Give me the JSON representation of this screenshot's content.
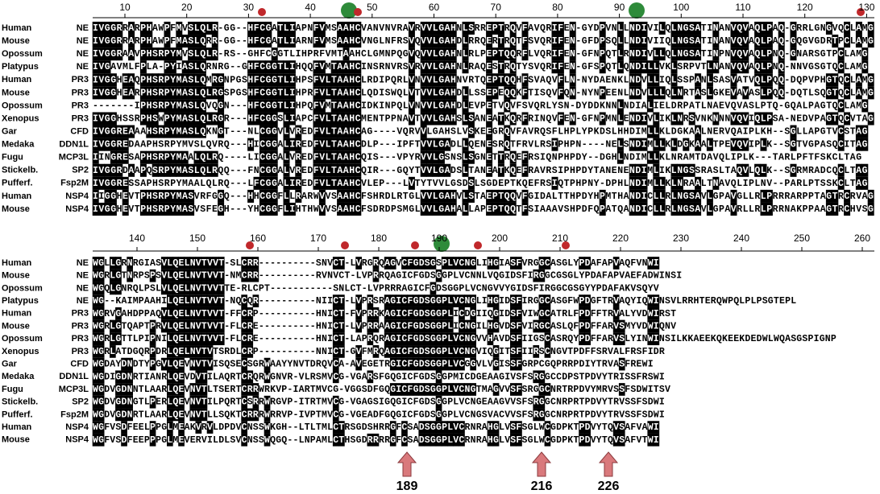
{
  "block1": {
    "ruler": [
      10,
      20,
      30,
      40,
      50,
      60,
      70,
      80,
      90,
      100,
      110,
      120,
      130
    ],
    "rows": [
      {
        "species": "Human",
        "protein": "NE",
        "sequence": "IVGGRRARPHAWPFMVSLQLR-GG--HFCGATLIAPNFVMSAAHCVANVNVRAVRVVLGAHNLSRREPTRQVFAVQRIFEN-GYDPVNLLNDIVILQLNGSATINANVQVAQLPAQ-GRRLGNGVQCLAMG"
      },
      {
        "species": "Mouse",
        "protein": "NE",
        "sequence": "IVGGRRARPHAWPFMASLQRR-GG--HFCGATLIARNFVMSAAHCVNGLNFRSVQVVLGAHDLRRQERTRQTFSVQRIFEN-GFDPSQLLNDIVIIQLNGSATINANVQVAQLPAQ-GQGVGDRTPCLAMG"
      },
      {
        "species": "Opossum",
        "protein": "NE",
        "sequence": "IVGGRAAVPHSRPYMVSLQLR-RS--GHFCGGTLIHPRFVMTAAHCLGMNPQGVQVVLGAHNLRLPEPTQQRFLVQRIFEN-GFNPQTLRNDIVLLQLNGSATINPNVQVAQLPNQ-GNARSGTPCLAMG"
      },
      {
        "species": "Platypus",
        "protein": "NE",
        "sequence": "IVGAVMLFPLA-PYIASLQRNRG--GHFCGGTLIHQQFVMTAAHCINSRNVRSVRVVLGAHNLRAQESTRQTYSVQRIFEN-GFSPQTLQNDILLVKLSRPVTLNANVQVAQLPNQ-NNVGSGTQCLAMG"
      },
      {
        "species": "Human",
        "protein": "PR3",
        "sequence": "IVGGHEAQPHSRPYMASLQMRGNPGSHFCGGTLIHPSFVLTAAHCLRDIPQRLVNVVLGAHNVRTQEPTQQHFSVAQVFLN-NYDAENKLNDVLLIQLSSPANLSASVATVQLPQQ-DQPVPHGTQCLAMG"
      },
      {
        "species": "Mouse",
        "protein": "PR3",
        "sequence": "IVGGHEARPHSRPYMASLQLRGSPGSHFCGGTLIHPRFVLTAAHCLQDISWQLVTVVLGAHDLLSSEPEQQKFTISQVFQN-NYNPEENLNDVLLLQLNRTASLGKEVAVASLPQQ-DQTLSQGTQCLAMG"
      },
      {
        "species": "Opossum",
        "protein": "PR3",
        "sequence": "-------IPHSRPYMASLQVQGN---HFCGGTLIHPQFVMTAAHCIDKINPQLVNVVLGAHDLEVPETVQVFSVQRLYSN-DYDDKNNLNDIALIELDRPATLNAEVQVASLPTQ-GQALPAGTQCLAMG"
      },
      {
        "species": "Xenopus",
        "protein": "PR3",
        "sequence": "IVGGHSSRPHSWPYMASLQLRGR---HFCGGSLIAPCFVLTAAHCMENTPPNAVTVVLGAHSLSANEATKQRFRINQVFEN-GFNPMNLENDIVLIKLNRSVNKNNNVQVIQLPSA-NEDVPAGTQCVTAG"
      },
      {
        "species": "Gar",
        "protein": "CFD",
        "sequence": "IVGGREAAAHSRPYMASLQKNGT---NLCGGVLVREDFVLTAAHCAG----VQRVVLGAHSLVSKEEGRQVFAVRQSFLHPLYPKDSLHHDIMLLKLDGKAALNERVQAIPLKH--SGLLAPGTVCSTAG"
      },
      {
        "species": "Medaka",
        "protein": "DDN1L",
        "sequence": "IVGGREDAAPHSRPYMVSLQVRQ---HICGGALIREDFVLTAAHCDLP---IPFTVVLGADLLQENESRQTFRVLRSIPHPN----NELSNDIMLLKLDGKAALTPEVQVIPLK--SGTVGPASQCITAG"
      },
      {
        "species": "Fugu",
        "protein": "MCP3L",
        "sequence": "IINGRESAPHSRPYMAALQLRQ----LICGGALVREDFVLTAAHCQIS---VPYRVVLGSNSLSGNETTRQEFRSIQNPHPDY--DGHLNDIMLLKLNRAMTDAVQLIPLK---TARLPFTFSKCLTAG"
      },
      {
        "species": "Stickelb.",
        "protein": "SP2",
        "sequence": "IVGGRDAAPQSRPYMASLQLRQQ---FNCGGALVREDFVLTAAHCQIR---GQYTVVLGADSLTANEATKQEFRAVRSIPHPDYTANENENDIMLIKLNGSSRASLTAQVLQLK--SGRMRADCQCLTAG"
      },
      {
        "species": "Pufferf.",
        "protein": "Fsp2M",
        "sequence": "IVGGRESSAPHSRPYMAALQLRQ---LFCGGALIREDFVLTAAHCVLEP---LVTYTVVLGSDSLSGDEPTKQEFRSIQTPHPNY-DPHLNDIMLLKLNRAALTNAVQLIPLNV--PARLPTSSKCLTAG"
      },
      {
        "species": "Human",
        "protein": "NSP4",
        "sequence": "IIGGHEVTPHSRPYMASVRFGGQ---HHCGGFLLRARWVVSAAHCFSHRDLRTGLVVLGAHVLSTAEPTQQVFGIDALTTHPDYHPMTHANDICLLRLNGSAVLGPAVGLLRLPRRRARPPTAGTRCRVAG"
      },
      {
        "species": "Mouse",
        "protein": "NSP4",
        "sequence": "IVGGHEVTPHSRPYMASVSFEGH---YHCGGFLIHTHWVVSAAHCFSDRDPSMGLVVLGAHALLAPEPTQQTFSIAAAVSHPDFQPATQANDICLLRLNGSAVLGPAVRLLRLPRRNAKPPAAGTRCHVSG"
      }
    ]
  },
  "block2": {
    "ruler": [
      140,
      150,
      160,
      170,
      180,
      190,
      200,
      210,
      220,
      230,
      240,
      250,
      260
    ],
    "rows": [
      {
        "species": "Human",
        "protein": "NE",
        "sequence": "WGLLGRNRGIASVLQELNVTVVT-SLCRR----------SNVCT-LVRGRQAGVCFGDSGSPLVCNGLIHGIASFVRGGCASGLYPDAFAPVAQFVNWI"
      },
      {
        "species": "Mouse",
        "protein": "NE",
        "sequence": "WGRLGTNRPSPSVLQELNVTVVT-NMCRR----------RVNVCT-LVPRRQAGICFGDSGGPLVCNNLVQGIDSFIRGGCGSGLYPDAFAPVAEFADWINSI"
      },
      {
        "species": "Opossum",
        "protein": "NE",
        "sequence": "WGQLGNRQLPSLVLQELNVTVVTTE-RLCPT-----------SNLCT-LVPRRRAGICFGDSGGPLVCNGVVYGIDSFIRGGCGSGYYPDAFAKVSQYV"
      },
      {
        "species": "Platypus",
        "protein": "NE",
        "sequence": "WG--KAIMPAAHILQELNVTVVT-NQCQR----------NIICT-LVPRSRAGICFGDSGGPLVCNGLIHGIDSFIRGGCASGFWPDGFTRVAQYIQWINSVLRRHTERQWPQLPLPSGTEPL"
      },
      {
        "species": "Human",
        "protein": "PR3",
        "sequence": "WGRVGAHDPPAQVLQELNVTVVT-FFCRP----------HNICT-FVPRRKAGICFGDSGGPLICDGIIQGIDSFVIWGCATRLFPDFFTRVALYVDWIRST"
      },
      {
        "species": "Mouse",
        "protein": "PR3",
        "sequence": "WGRLGTQAPTPRVLQELNVTVVT-FLCRE----------HNICT-LVPRRAAGICFGDSGGPLICNGILHGVDSFVIRGCASLQFPDFFARVSMYVDWIQNV"
      },
      {
        "species": "Opossum",
        "protein": "PR3",
        "sequence": "WGRLGTTLPIPNILQELNVTVVT-FLCRE----------HNICT-LAPRQRAGICFGDSGGPLVCNGVVHAVDSFIIGSCASRQYPDFFARVSLYINWINSILKKAEEKQKEEKDEDWLWQASGSPIGNP"
      },
      {
        "species": "Xenopus",
        "protein": "PR3",
        "sequence": "WGRLATDGQRPDRLQELNVTVTSRDLCRP----------NNICT-GVFMRQAGICFGDSGGPLVCNGVIQGITSFIIRSCNGVTPDFFSRVALFRSFIDR"
      },
      {
        "species": "Gar",
        "protein": "CFD",
        "sequence": "WGDAYDNDTYPGVLQEVNVTVISQSECSGRWAAYYNVTDRQVCA-AVEGETRGICFGDSGGPLVCGGVLVGISSFGRPCGQPRRPDIYTRVASFREWI"
      },
      {
        "species": "Medaka",
        "protein": "DDN1L",
        "sequence": "WGDIGDNRTIANRLQEVDVTILAQRTCRQRWGNVR-VLRSMVCG-VGARSFGQGICFGDSGGPMICDGEAAGIVSFSRGGCCDPSTPDVYTRISSFRSWI"
      },
      {
        "species": "Fugu",
        "protein": "MCP3L",
        "sequence": "WGDVGDNNTLAARLQEVNVTLTSERTCRRWRKVP-IARTMVCG-VGGSDFGQGICFGDSGGPLVCNGTMAGVVSFSRGGCNRTRPDVYMRVSSFSDWITSV"
      },
      {
        "species": "Stickelb.",
        "protein": "SP2",
        "sequence": "WGDVGDNGTLPERLQEVNVTILPQRTCSRRWRGVP-ITRTMVCG-VGAGSIGQGICFGDSGGPLVCNGEAAGVVSFSRGGCNRPRTPDVYTRVSSFSDWI"
      },
      {
        "species": "Pufferf.",
        "protein": "Fsp2M",
        "sequence": "WGDVGDNRTLAARLQEVNVTLLSQKTCRRRWRRVP-IVPTMVCG-VGEADFGQGICFGDSGGPLVCNGSVACVVSFSRGGCNRPRTPDVYTRVSSFSDWI"
      },
      {
        "species": "Human",
        "protein": "NSP4",
        "sequence": "WGFVSDFEELPPGLMEAKVRVLDPDVCNSSWKGH--LTLTMLCTRSGDSHRRGFCSADSGGPLVCRNRAHGLVSFSGLWCGDPKTPDVYTQVSAFVAWI"
      },
      {
        "species": "Mouse",
        "protein": "NSP4",
        "sequence": "WGFVSDFEEPPPGLMEVERVILDLSVCNSSWQGQ--LNPAMLCTHSGDRRRRGFCSADSGGPLVCRNRAHGLVSFSGLWCGDPKTPDVYTQVSAFVTWI"
      }
    ]
  },
  "arrows": [
    {
      "label": "189"
    },
    {
      "label": "216"
    },
    {
      "label": "226"
    }
  ]
}
